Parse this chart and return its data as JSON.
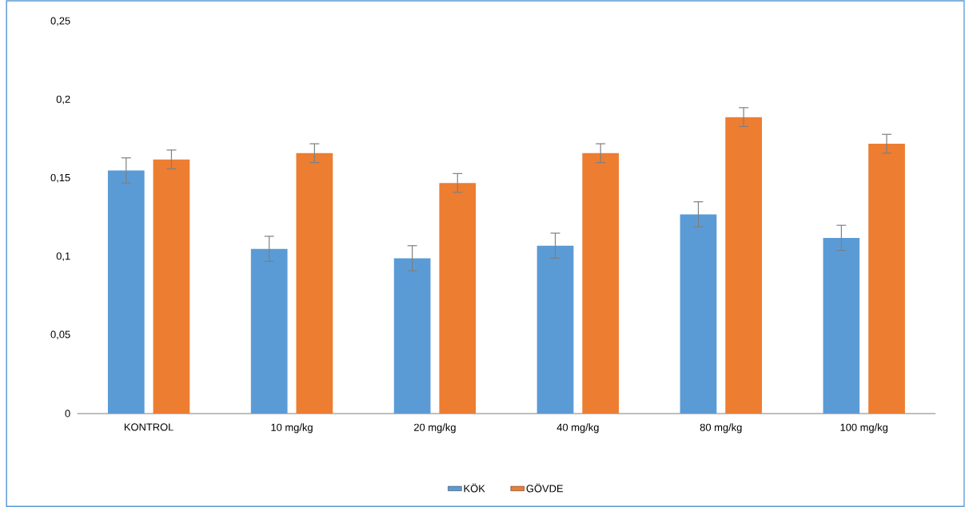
{
  "chart_data": {
    "type": "bar",
    "categories": [
      "KONTROL",
      "10 mg/kg",
      "20 mg/kg",
      "40 mg/kg",
      "80 mg/kg",
      "100 mg/kg"
    ],
    "series": [
      {
        "name": "KÖK",
        "color": "#5b9bd5",
        "values": [
          0.155,
          0.105,
          0.099,
          0.107,
          0.127,
          0.112
        ],
        "errors": [
          0.008,
          0.008,
          0.008,
          0.008,
          0.008,
          0.008
        ]
      },
      {
        "name": "GÖVDE",
        "color": "#ed7d31",
        "values": [
          0.162,
          0.166,
          0.147,
          0.166,
          0.189,
          0.172
        ],
        "errors": [
          0.006,
          0.006,
          0.006,
          0.006,
          0.006,
          0.006
        ]
      }
    ],
    "ylim": [
      0,
      0.25
    ],
    "yticks": [
      0,
      {
        "value": 0.05,
        "label": "0,05"
      },
      {
        "value": 0.1,
        "label": "0,1"
      },
      {
        "value": 0.15,
        "label": "0,15"
      },
      {
        "value": 0.2,
        "label": "0,2"
      },
      {
        "value": 0.25,
        "label": "0,25"
      }
    ],
    "grid": false,
    "legend": "bottom"
  }
}
